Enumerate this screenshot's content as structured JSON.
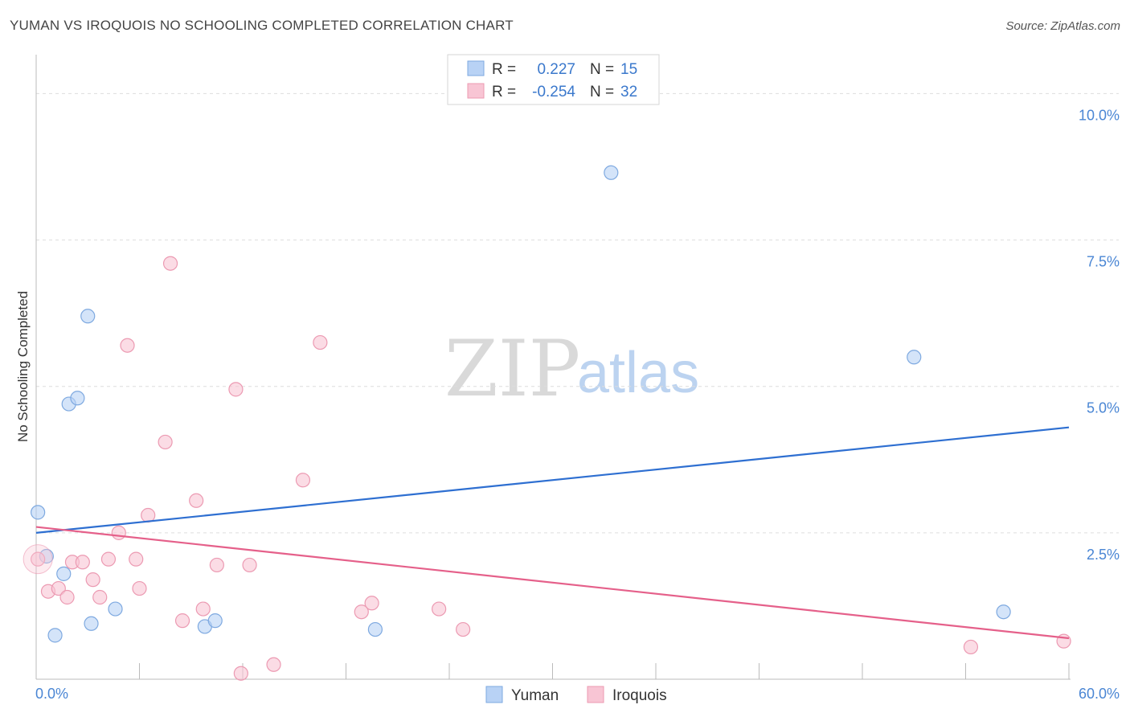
{
  "header": {
    "title": "YUMAN VS IROQUOIS NO SCHOOLING COMPLETED CORRELATION CHART",
    "source": "Source: ZipAtlas.com"
  },
  "watermark": {
    "zip": "ZIP",
    "atlas": "atlas"
  },
  "colors": {
    "yuman_fill": "#b8d2f5",
    "yuman_stroke": "#7ea9e0",
    "yuman_line": "#2e6fd1",
    "iroquois_fill": "#f8c5d4",
    "iroquois_stroke": "#ec9ab2",
    "iroquois_line": "#e5608a",
    "grid": "#dddddd",
    "tick_text": "#4a86d4"
  },
  "legend": {
    "r_label": "R =",
    "n_label": "N =",
    "yuman": {
      "r": "0.227",
      "n": "15"
    },
    "iroquois": {
      "r": "-0.254",
      "n": "32"
    }
  },
  "bottom_legend": {
    "yuman": "Yuman",
    "iroquois": "Iroquois"
  },
  "chart_data": {
    "type": "scatter",
    "title": "YUMAN VS IROQUOIS NO SCHOOLING COMPLETED CORRELATION CHART",
    "xlabel": "",
    "ylabel": "No Schooling Completed",
    "xlim": [
      0,
      60
    ],
    "ylim": [
      0,
      10.5
    ],
    "x_tick_labels": [
      "0.0%",
      "60.0%"
    ],
    "y_ticks": [
      2.5,
      5.0,
      7.5,
      10.0
    ],
    "y_tick_labels": [
      "2.5%",
      "5.0%",
      "7.5%",
      "10.0%"
    ],
    "series": [
      {
        "name": "Yuman",
        "points": [
          [
            0.1,
            2.85
          ],
          [
            0.6,
            2.1
          ],
          [
            1.1,
            0.75
          ],
          [
            1.6,
            1.8
          ],
          [
            1.9,
            4.7
          ],
          [
            2.4,
            4.8
          ],
          [
            3.0,
            6.2
          ],
          [
            3.2,
            0.95
          ],
          [
            4.6,
            1.2
          ],
          [
            9.8,
            0.9
          ],
          [
            10.4,
            1.0
          ],
          [
            19.7,
            0.85
          ],
          [
            33.4,
            8.65
          ],
          [
            51.0,
            5.5
          ],
          [
            56.2,
            1.15
          ]
        ],
        "trend": {
          "x": [
            0,
            60
          ],
          "y": [
            2.5,
            4.3
          ]
        }
      },
      {
        "name": "Iroquois",
        "points": [
          [
            0.1,
            2.05
          ],
          [
            0.7,
            1.5
          ],
          [
            1.3,
            1.55
          ],
          [
            1.8,
            1.4
          ],
          [
            2.1,
            2.0
          ],
          [
            2.7,
            2.0
          ],
          [
            3.3,
            1.7
          ],
          [
            3.7,
            1.4
          ],
          [
            4.2,
            2.05
          ],
          [
            4.8,
            2.5
          ],
          [
            5.3,
            5.7
          ],
          [
            5.8,
            2.05
          ],
          [
            6.0,
            1.55
          ],
          [
            6.5,
            2.8
          ],
          [
            7.5,
            4.05
          ],
          [
            7.8,
            7.1
          ],
          [
            8.5,
            1.0
          ],
          [
            9.3,
            3.05
          ],
          [
            9.7,
            1.2
          ],
          [
            10.5,
            1.95
          ],
          [
            11.6,
            4.95
          ],
          [
            11.9,
            0.1
          ],
          [
            12.4,
            1.95
          ],
          [
            13.8,
            0.25
          ],
          [
            15.5,
            3.4
          ],
          [
            16.5,
            5.75
          ],
          [
            18.9,
            1.15
          ],
          [
            19.5,
            1.3
          ],
          [
            23.4,
            1.2
          ],
          [
            24.8,
            0.85
          ],
          [
            54.3,
            0.55
          ],
          [
            59.7,
            0.65
          ]
        ],
        "trend": {
          "x": [
            0,
            60
          ],
          "y": [
            2.6,
            0.7
          ]
        }
      }
    ]
  }
}
